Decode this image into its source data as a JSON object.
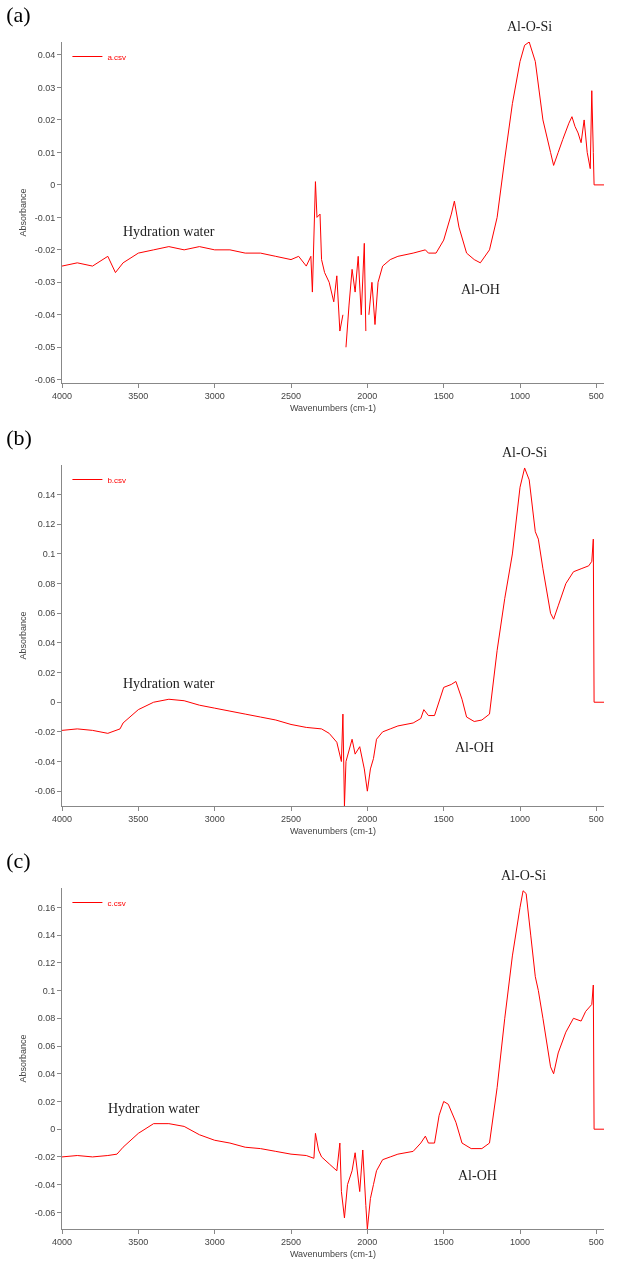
{
  "chart_data": [
    {
      "type": "line",
      "title": "(a)",
      "xlabel": "Wavenumbers (cm-1)",
      "ylabel": "Absorbance",
      "xlim": [
        4000,
        450
      ],
      "xticks": [
        4000,
        3500,
        3000,
        2500,
        2000,
        1500,
        1000,
        500
      ],
      "ylim": [
        -0.061,
        0.044
      ],
      "yticks": [
        -0.06,
        -0.05,
        -0.04,
        -0.03,
        -0.02,
        -0.01,
        0.0,
        0.01,
        0.02,
        0.03,
        0.04
      ],
      "grid": false,
      "legend": "top left",
      "line_style": "solid",
      "marker": "none",
      "annotations": [
        {
          "text": "Hydration water",
          "x": 3300,
          "y": -0.019
        },
        {
          "text": "Al-OH",
          "x": 1260,
          "y": -0.024
        },
        {
          "text": "Al-O-Si",
          "x": 940,
          "y": 0.044
        }
      ],
      "x": [
        4000,
        3900,
        3800,
        3700,
        3650,
        3600,
        3500,
        3400,
        3300,
        3200,
        3100,
        3000,
        2900,
        2800,
        2700,
        2600,
        2500,
        2450,
        2400,
        2370,
        2360,
        2340,
        2330,
        2310,
        2300,
        2280,
        2250,
        2220,
        2200,
        2180,
        2160,
        2150,
        2140,
        2120,
        2100,
        2080,
        2060,
        2040,
        2020,
        2010,
        2000,
        1990,
        1970,
        1950,
        1930,
        1900,
        1850,
        1800,
        1700,
        1620,
        1600,
        1550,
        1500,
        1450,
        1430,
        1400,
        1350,
        1300,
        1260,
        1200,
        1150,
        1100,
        1050,
        1000,
        970,
        940,
        900,
        850,
        800,
        780,
        750,
        720,
        680,
        660,
        640,
        620,
        600,
        580,
        560,
        540,
        530,
        520,
        515,
        450
      ],
      "series": [
        {
          "name": "a.csv",
          "color": "#ff0000",
          "values": [
            -0.025,
            -0.024,
            -0.025,
            -0.022,
            -0.027,
            -0.024,
            -0.021,
            -0.02,
            -0.019,
            -0.02,
            -0.019,
            -0.02,
            -0.02,
            -0.021,
            -0.021,
            -0.022,
            -0.023,
            -0.022,
            -0.025,
            -0.022,
            -0.033,
            0.001,
            -0.01,
            -0.009,
            -0.023,
            -0.027,
            -0.03,
            -0.036,
            -0.028,
            -0.045,
            -0.04,
            null,
            -0.05,
            -0.037,
            -0.026,
            -0.033,
            -0.022,
            -0.04,
            -0.018,
            -0.045,
            null,
            -0.04,
            -0.03,
            -0.043,
            -0.03,
            -0.025,
            -0.023,
            -0.022,
            -0.021,
            -0.02,
            -0.021,
            -0.021,
            -0.017,
            -0.009,
            -0.005,
            -0.013,
            -0.021,
            -0.023,
            -0.024,
            -0.02,
            -0.01,
            0.008,
            0.025,
            0.038,
            0.043,
            0.044,
            0.038,
            0.02,
            0.01,
            0.006,
            0.01,
            0.014,
            0.019,
            0.021,
            0.018,
            0.016,
            0.013,
            0.02,
            0.01,
            0.005,
            0.029,
            0.01,
            0,
            0
          ]
        }
      ]
    },
    {
      "type": "line",
      "title": "(b)",
      "xlabel": "Wavenumbers (cm-1)",
      "ylabel": "Absorbance",
      "xlim": [
        4000,
        450
      ],
      "xticks": [
        4000,
        3500,
        3000,
        2500,
        2000,
        1500,
        1000,
        500
      ],
      "ylim": [
        -0.07,
        0.16
      ],
      "yticks": [
        -0.06,
        -0.04,
        -0.02,
        0.0,
        0.02,
        0.04,
        0.06,
        0.08,
        0.1,
        0.12,
        0.14
      ],
      "grid": false,
      "legend": "top left",
      "line_style": "solid",
      "marker": "none",
      "annotations": [
        {
          "text": "Hydration water",
          "x": 3300,
          "y": 0.002
        },
        {
          "text": "Al-OH",
          "x": 1300,
          "y": -0.013
        },
        {
          "text": "Al-O-Si",
          "x": 970,
          "y": 0.158
        }
      ],
      "x": [
        4000,
        3900,
        3800,
        3700,
        3620,
        3600,
        3500,
        3400,
        3300,
        3200,
        3100,
        3000,
        2900,
        2800,
        2700,
        2600,
        2500,
        2400,
        2300,
        2250,
        2200,
        2170,
        2160,
        2150,
        2140,
        2100,
        2080,
        2050,
        2020,
        2000,
        1980,
        1960,
        1940,
        1900,
        1850,
        1800,
        1700,
        1650,
        1630,
        1600,
        1560,
        1500,
        1450,
        1420,
        1380,
        1350,
        1300,
        1250,
        1200,
        1150,
        1100,
        1050,
        1000,
        970,
        940,
        900,
        880,
        850,
        800,
        780,
        750,
        700,
        650,
        600,
        550,
        530,
        520,
        515,
        450
      ],
      "series": [
        {
          "name": "b.csv",
          "color": "#ff0000",
          "values": [
            -0.019,
            -0.018,
            -0.019,
            -0.021,
            -0.018,
            -0.014,
            -0.005,
            0.0,
            0.002,
            0.001,
            -0.002,
            -0.004,
            -0.006,
            -0.008,
            -0.01,
            -0.012,
            -0.015,
            -0.017,
            -0.018,
            -0.021,
            -0.027,
            -0.04,
            -0.008,
            -0.07,
            -0.04,
            -0.025,
            -0.035,
            -0.03,
            -0.045,
            -0.06,
            -0.045,
            -0.038,
            -0.025,
            -0.02,
            -0.018,
            -0.016,
            -0.014,
            -0.011,
            -0.005,
            -0.009,
            -0.009,
            0.01,
            0.012,
            0.014,
            0.002,
            -0.01,
            -0.013,
            -0.012,
            -0.008,
            0.035,
            0.07,
            0.1,
            0.145,
            0.158,
            0.15,
            0.115,
            0.11,
            0.09,
            0.06,
            0.056,
            0.065,
            0.08,
            0.088,
            0.09,
            0.092,
            0.095,
            0.11,
            0,
            0
          ]
        }
      ]
    },
    {
      "type": "line",
      "title": "(c)",
      "xlabel": "Wavenumbers (cm-1)",
      "ylabel": "Absorbance",
      "xlim": [
        4000,
        450
      ],
      "xticks": [
        4000,
        3500,
        3000,
        2500,
        2000,
        1500,
        1000,
        500
      ],
      "ylim": [
        -0.072,
        0.174
      ],
      "yticks": [
        -0.06,
        -0.04,
        -0.02,
        0.0,
        0.02,
        0.04,
        0.06,
        0.08,
        0.1,
        0.12,
        0.14,
        0.16
      ],
      "grid": false,
      "legend": "top left",
      "line_style": "solid",
      "marker": "none",
      "annotations": [
        {
          "text": "Hydration water",
          "x": 3400,
          "y": 0.004
        },
        {
          "text": "Al-OH",
          "x": 1280,
          "y": -0.014
        },
        {
          "text": "Al-O-Si",
          "x": 980,
          "y": 0.172
        }
      ],
      "x": [
        4000,
        3900,
        3800,
        3700,
        3640,
        3600,
        3500,
        3400,
        3300,
        3200,
        3100,
        3000,
        2900,
        2800,
        2700,
        2600,
        2500,
        2400,
        2350,
        2340,
        2320,
        2300,
        2250,
        2200,
        2180,
        2170,
        2150,
        2130,
        2100,
        2080,
        2050,
        2030,
        2010,
        2000,
        1980,
        1960,
        1940,
        1900,
        1850,
        1800,
        1700,
        1650,
        1620,
        1600,
        1560,
        1530,
        1500,
        1470,
        1420,
        1380,
        1320,
        1250,
        1200,
        1150,
        1100,
        1050,
        1000,
        980,
        960,
        930,
        900,
        880,
        850,
        800,
        780,
        750,
        700,
        650,
        600,
        570,
        530,
        520,
        515,
        450
      ],
      "series": [
        {
          "name": "c.csv",
          "color": "#ff0000",
          "values": [
            -0.02,
            -0.019,
            -0.02,
            -0.019,
            -0.018,
            -0.013,
            -0.003,
            0.004,
            0.004,
            0.002,
            -0.004,
            -0.008,
            -0.01,
            -0.013,
            -0.014,
            -0.016,
            -0.018,
            -0.019,
            -0.021,
            -0.003,
            -0.015,
            -0.02,
            -0.025,
            -0.03,
            -0.01,
            -0.045,
            -0.064,
            -0.04,
            -0.03,
            -0.017,
            -0.045,
            -0.015,
            -0.055,
            -0.072,
            -0.05,
            -0.04,
            -0.03,
            -0.022,
            -0.02,
            -0.018,
            -0.016,
            -0.01,
            -0.005,
            -0.01,
            -0.01,
            0.01,
            0.02,
            0.018,
            0.005,
            -0.01,
            -0.014,
            -0.014,
            -0.01,
            0.03,
            0.08,
            0.125,
            0.16,
            0.172,
            0.17,
            0.14,
            0.11,
            0.1,
            0.08,
            0.045,
            0.04,
            0.055,
            0.07,
            0.08,
            0.078,
            0.085,
            0.09,
            0.104,
            0,
            0
          ]
        }
      ]
    }
  ]
}
